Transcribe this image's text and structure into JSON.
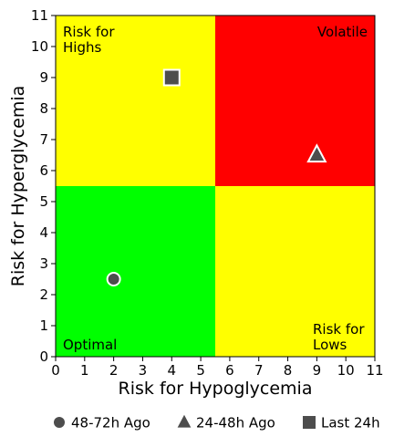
{
  "chart_data": {
    "type": "scatter",
    "xlabel": "Risk for Hypoglycemia",
    "ylabel": "Risk for Hyperglycemia",
    "xlim": [
      0,
      11
    ],
    "ylim": [
      0,
      11
    ],
    "xticks": [
      "0",
      "1",
      "2",
      "3",
      "4",
      "5",
      "6",
      "7",
      "8",
      "9",
      "10",
      "11"
    ],
    "yticks": [
      "0",
      "1",
      "2",
      "3",
      "4",
      "5",
      "6",
      "7",
      "8",
      "9",
      "10",
      "11"
    ],
    "grid": false,
    "legend_position": "bottom",
    "zones": [
      {
        "name": "optimal",
        "label": "Optimal",
        "x": [
          0,
          5.5
        ],
        "y": [
          0,
          5.5
        ],
        "color": "#00ff00"
      },
      {
        "name": "risk-for-lows",
        "label": "Risk for\nLows",
        "x": [
          5.5,
          11
        ],
        "y": [
          0,
          5.5
        ],
        "color": "#ffff00"
      },
      {
        "name": "risk-for-highs",
        "label": "Risk for\nHighs",
        "x": [
          0,
          5.5
        ],
        "y": [
          5.5,
          11
        ],
        "color": "#ffff00"
      },
      {
        "name": "volatile",
        "label": "Volatile",
        "x": [
          5.5,
          11
        ],
        "y": [
          5.5,
          11
        ],
        "color": "#ff0000"
      }
    ],
    "series": [
      {
        "name": "48-72h Ago",
        "marker": "circle",
        "x": 2,
        "y": 2.5
      },
      {
        "name": "24-48h Ago",
        "marker": "triangle",
        "x": 9,
        "y": 6.5
      },
      {
        "name": "Last 24h",
        "marker": "square",
        "x": 4,
        "y": 9
      }
    ],
    "marker_color": "#4d4d4d",
    "marker_edge": "#ffffff"
  }
}
